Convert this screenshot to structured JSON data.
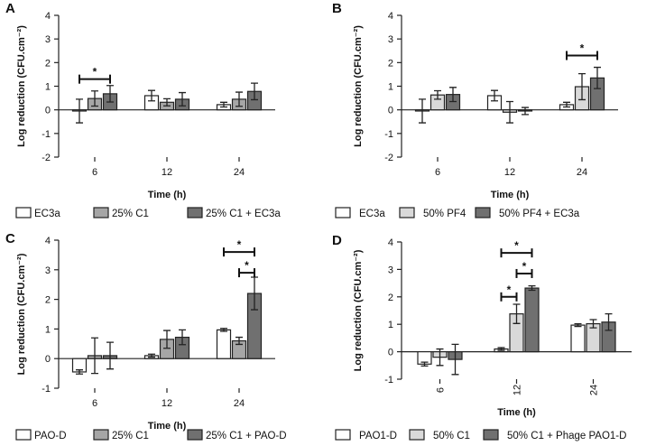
{
  "colors": {
    "white": "#ffffff",
    "light": "#d9d9d9",
    "mid": "#a6a6a6",
    "dark": "#707070"
  },
  "chart_data": [
    {
      "panel": "A",
      "type": "bar",
      "xlabel": "Time (h)",
      "ylabel": "Log reduction (CFU.cm⁻²)",
      "ylim": [
        -2,
        4
      ],
      "yticks": [
        -2,
        -1,
        0,
        1,
        2,
        3,
        4
      ],
      "categories": [
        "6",
        "12",
        "24"
      ],
      "tick_rotation": 0,
      "series": [
        {
          "name": "EC3a",
          "color": "#ffffff",
          "values": [
            -0.05,
            0.6,
            0.22
          ],
          "errors": [
            0.5,
            0.22,
            0.1
          ]
        },
        {
          "name": "25% C1",
          "color": "#a6a6a6",
          "values": [
            0.48,
            0.32,
            0.45
          ],
          "errors": [
            0.32,
            0.15,
            0.3
          ]
        },
        {
          "name": "25% C1 + EC3a",
          "color": "#707070",
          "values": [
            0.68,
            0.45,
            0.78
          ],
          "errors": [
            0.35,
            0.28,
            0.35
          ]
        }
      ],
      "significance": [
        {
          "category": 0,
          "from": 0,
          "to": 2,
          "level": 1.3,
          "label": "*"
        }
      ]
    },
    {
      "panel": "B",
      "type": "bar",
      "xlabel": "Time (h)",
      "ylabel": "Log reduction (CFU.cm⁻²)",
      "ylim": [
        -2,
        4
      ],
      "yticks": [
        -2,
        -1,
        0,
        1,
        2,
        3,
        4
      ],
      "categories": [
        "6",
        "12",
        "24"
      ],
      "tick_rotation": 0,
      "series": [
        {
          "name": "EC3a",
          "color": "#ffffff",
          "values": [
            -0.05,
            0.6,
            0.22
          ],
          "errors": [
            0.5,
            0.22,
            0.1
          ]
        },
        {
          "name": "50% PF4",
          "color": "#d9d9d9",
          "values": [
            0.63,
            -0.1,
            0.98
          ],
          "errors": [
            0.18,
            0.45,
            0.55
          ]
        },
        {
          "name": "50% PF4 + EC3a",
          "color": "#707070",
          "values": [
            0.65,
            -0.05,
            1.35
          ],
          "errors": [
            0.3,
            0.15,
            0.45
          ]
        }
      ],
      "significance": [
        {
          "category": 2,
          "from": 0,
          "to": 2,
          "level": 2.3,
          "label": "*"
        }
      ]
    },
    {
      "panel": "C",
      "type": "bar",
      "xlabel": "Time (h)",
      "ylabel": "Log reduction (CFU.cm⁻²)",
      "ylim": [
        -1,
        4
      ],
      "yticks": [
        -1,
        0,
        1,
        2,
        3,
        4
      ],
      "categories": [
        "6",
        "12",
        "24"
      ],
      "tick_rotation": 0,
      "series": [
        {
          "name": "PAO-D",
          "color": "#ffffff",
          "values": [
            -0.45,
            0.1,
            0.97
          ],
          "errors": [
            0.07,
            0.05,
            0.05
          ]
        },
        {
          "name": "25% C1",
          "color": "#a6a6a6",
          "values": [
            0.1,
            0.65,
            0.6
          ],
          "errors": [
            0.6,
            0.3,
            0.12
          ]
        },
        {
          "name": "25% C1 + PAO-D",
          "color": "#707070",
          "values": [
            0.1,
            0.72,
            2.2
          ],
          "errors": [
            0.45,
            0.25,
            0.55
          ]
        }
      ],
      "significance": [
        {
          "category": 2,
          "from": 0,
          "to": 2,
          "level": 3.6,
          "label": "*"
        },
        {
          "category": 2,
          "from": 1,
          "to": 2,
          "level": 2.9,
          "label": "*"
        }
      ]
    },
    {
      "panel": "D",
      "type": "bar",
      "xlabel": "Time (h)",
      "ylabel": "Log reduction (CFU.cm⁻²)",
      "ylim": [
        -1,
        4
      ],
      "yticks": [
        -1,
        0,
        1,
        2,
        3,
        4
      ],
      "categories": [
        "6",
        "12",
        "24"
      ],
      "tick_rotation": -90,
      "series": [
        {
          "name": "PAO1-D",
          "color": "#ffffff",
          "values": [
            -0.45,
            0.1,
            0.97
          ],
          "errors": [
            0.07,
            0.05,
            0.05
          ]
        },
        {
          "name": "50% C1",
          "color": "#d9d9d9",
          "values": [
            -0.2,
            1.38,
            1.02
          ],
          "errors": [
            0.3,
            0.35,
            0.15
          ]
        },
        {
          "name": "50% C1 + Phage PAO1-D",
          "color": "#707070",
          "values": [
            -0.28,
            2.32,
            1.08
          ],
          "errors": [
            0.55,
            0.08,
            0.3
          ]
        }
      ],
      "significance": [
        {
          "category": 1,
          "from": 0,
          "to": 2,
          "level": 3.6,
          "label": "*"
        },
        {
          "category": 1,
          "from": 1,
          "to": 2,
          "level": 2.85,
          "label": "*"
        },
        {
          "category": 1,
          "from": 0,
          "to": 1,
          "level": 2.0,
          "label": "*"
        }
      ]
    }
  ]
}
